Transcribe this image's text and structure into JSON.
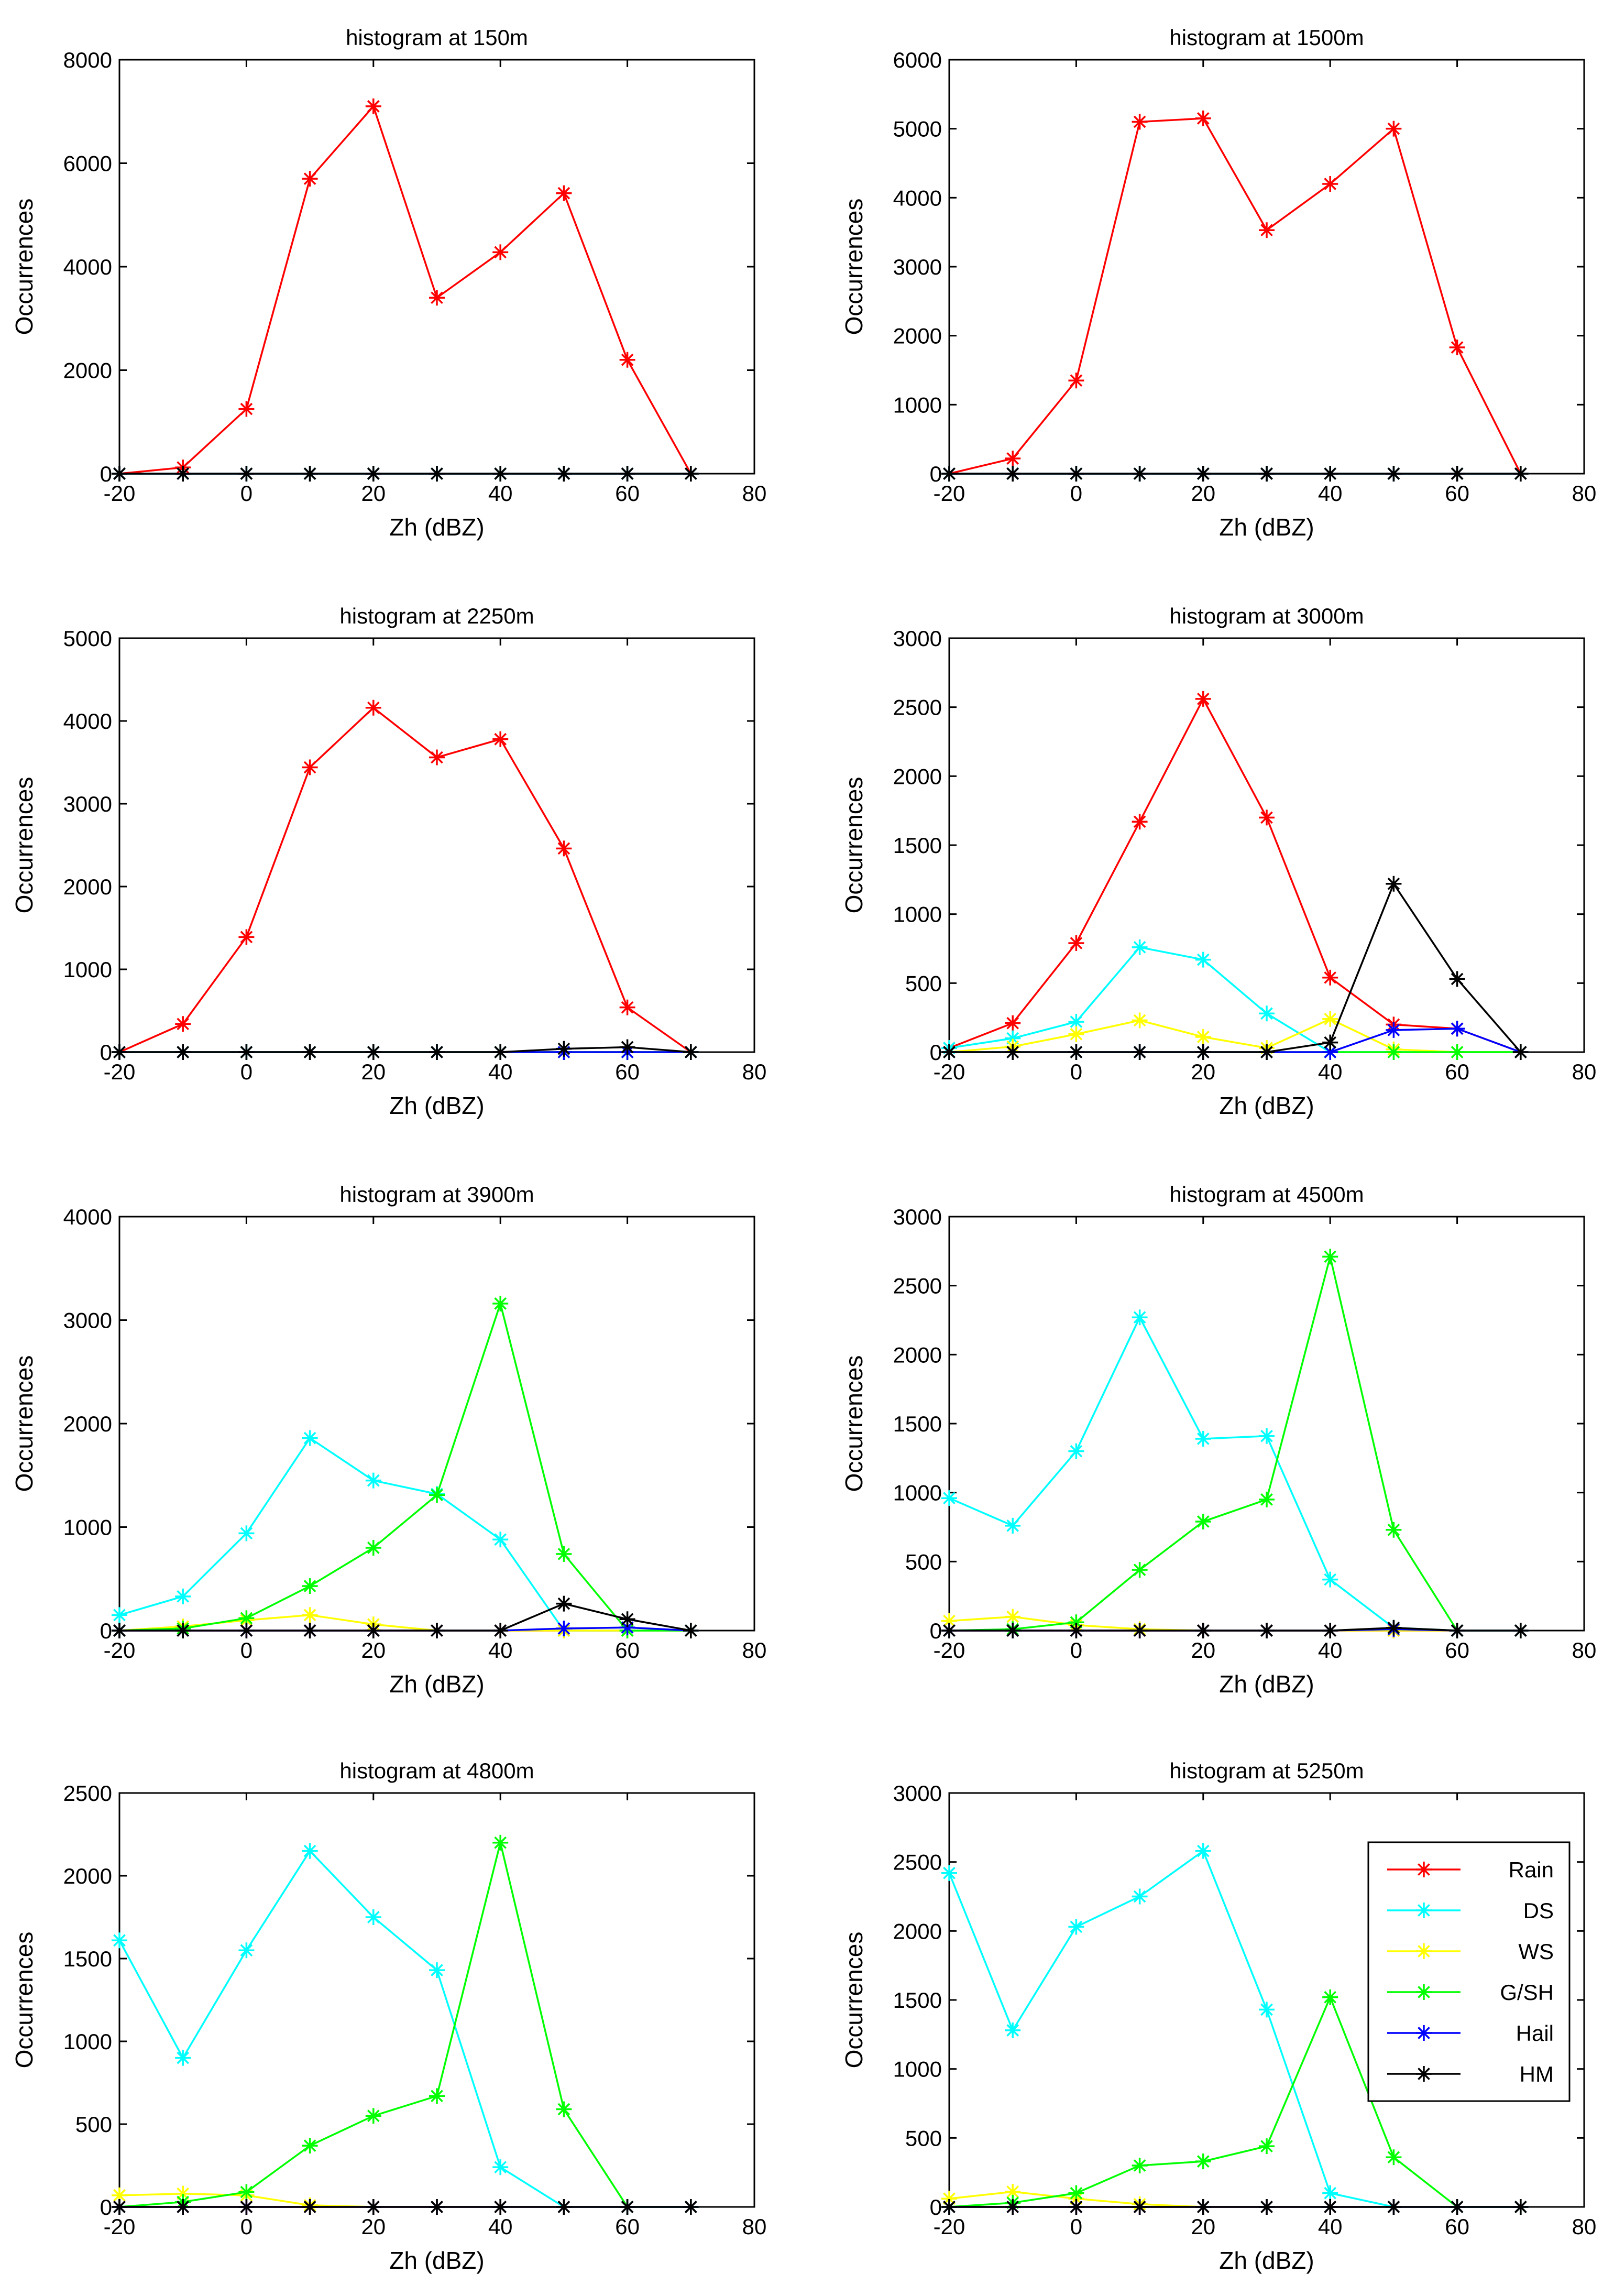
{
  "figure": {
    "xlabel": "Zh (dBZ)",
    "ylabel": "Occurrences"
  },
  "legend": {
    "placement": "top-right",
    "entries": [
      {
        "name": "Rain",
        "color": "#ff0000"
      },
      {
        "name": "DS",
        "color": "#00ffff"
      },
      {
        "name": "WS",
        "color": "#ffff00"
      },
      {
        "name": "G/SH",
        "color": "#00ff00"
      },
      {
        "name": "Hail",
        "color": "#0000ff"
      },
      {
        "name": "HM",
        "color": "#000000"
      }
    ]
  },
  "chart_data": [
    {
      "type": "line",
      "title": "histogram at 150m",
      "xlabel": "Zh (dBZ)",
      "ylabel": "Occurrences",
      "x": [
        -20,
        -10,
        0,
        10,
        20,
        30,
        40,
        50,
        60,
        70
      ],
      "xlim": [
        -20,
        80
      ],
      "ylim": [
        0,
        8000
      ],
      "xticks": [
        -20,
        0,
        20,
        40,
        60,
        80
      ],
      "yticks": [
        0,
        2000,
        4000,
        6000,
        8000
      ],
      "series": [
        {
          "name": "Rain",
          "color": "#ff0000",
          "values": [
            0,
            120,
            1250,
            5700,
            7100,
            3400,
            4280,
            5420,
            2200,
            0
          ]
        },
        {
          "name": "DS",
          "color": "#00ffff",
          "values": [
            0,
            0,
            0,
            0,
            0,
            0,
            0,
            0,
            0,
            0
          ]
        },
        {
          "name": "WS",
          "color": "#ffff00",
          "values": [
            0,
            0,
            0,
            0,
            0,
            0,
            0,
            0,
            0,
            0
          ]
        },
        {
          "name": "G/SH",
          "color": "#00ff00",
          "values": [
            0,
            0,
            0,
            0,
            0,
            0,
            0,
            0,
            0,
            0
          ]
        },
        {
          "name": "Hail",
          "color": "#0000ff",
          "values": [
            0,
            0,
            0,
            0,
            0,
            0,
            0,
            0,
            0,
            0
          ]
        },
        {
          "name": "HM",
          "color": "#000000",
          "values": [
            0,
            0,
            0,
            0,
            0,
            0,
            0,
            0,
            0,
            0
          ]
        }
      ]
    },
    {
      "type": "line",
      "title": "histogram at 1500m",
      "xlabel": "Zh (dBZ)",
      "ylabel": "Occurrences",
      "x": [
        -20,
        -10,
        0,
        10,
        20,
        30,
        40,
        50,
        60,
        70
      ],
      "xlim": [
        -20,
        80
      ],
      "ylim": [
        0,
        6000
      ],
      "xticks": [
        -20,
        0,
        20,
        40,
        60,
        80
      ],
      "yticks": [
        0,
        1000,
        2000,
        3000,
        4000,
        5000,
        6000
      ],
      "series": [
        {
          "name": "Rain",
          "color": "#ff0000",
          "values": [
            0,
            220,
            1350,
            5100,
            5150,
            3530,
            4200,
            5000,
            1830,
            0
          ]
        },
        {
          "name": "DS",
          "color": "#00ffff",
          "values": [
            0,
            0,
            0,
            0,
            0,
            0,
            0,
            0,
            0,
            0
          ]
        },
        {
          "name": "WS",
          "color": "#ffff00",
          "values": [
            0,
            0,
            0,
            0,
            0,
            0,
            0,
            0,
            0,
            0
          ]
        },
        {
          "name": "G/SH",
          "color": "#00ff00",
          "values": [
            0,
            0,
            0,
            0,
            0,
            0,
            0,
            0,
            0,
            0
          ]
        },
        {
          "name": "Hail",
          "color": "#0000ff",
          "values": [
            0,
            0,
            0,
            0,
            0,
            0,
            0,
            0,
            0,
            0
          ]
        },
        {
          "name": "HM",
          "color": "#000000",
          "values": [
            0,
            0,
            0,
            0,
            0,
            0,
            0,
            0,
            0,
            0
          ]
        }
      ]
    },
    {
      "type": "line",
      "title": "histogram at 2250m",
      "xlabel": "Zh (dBZ)",
      "ylabel": "Occurrences",
      "x": [
        -20,
        -10,
        0,
        10,
        20,
        30,
        40,
        50,
        60,
        70
      ],
      "xlim": [
        -20,
        80
      ],
      "ylim": [
        0,
        5000
      ],
      "xticks": [
        -20,
        0,
        20,
        40,
        60,
        80
      ],
      "yticks": [
        0,
        1000,
        2000,
        3000,
        4000,
        5000
      ],
      "series": [
        {
          "name": "Rain",
          "color": "#ff0000",
          "values": [
            0,
            340,
            1390,
            3440,
            4160,
            3560,
            3780,
            2460,
            540,
            0
          ]
        },
        {
          "name": "DS",
          "color": "#00ffff",
          "values": [
            0,
            0,
            0,
            0,
            0,
            0,
            0,
            0,
            0,
            0
          ]
        },
        {
          "name": "WS",
          "color": "#ffff00",
          "values": [
            0,
            0,
            0,
            0,
            0,
            0,
            0,
            0,
            0,
            0
          ]
        },
        {
          "name": "G/SH",
          "color": "#00ff00",
          "values": [
            0,
            0,
            0,
            0,
            0,
            0,
            0,
            0,
            0,
            0
          ]
        },
        {
          "name": "Hail",
          "color": "#0000ff",
          "values": [
            0,
            0,
            0,
            0,
            0,
            0,
            0,
            0,
            0,
            0
          ]
        },
        {
          "name": "HM",
          "color": "#000000",
          "values": [
            0,
            0,
            0,
            0,
            0,
            0,
            0,
            40,
            60,
            0
          ]
        }
      ]
    },
    {
      "type": "line",
      "title": "histogram at 3000m",
      "xlabel": "Zh (dBZ)",
      "ylabel": "Occurrences",
      "x": [
        -20,
        -10,
        0,
        10,
        20,
        30,
        40,
        50,
        60,
        70
      ],
      "xlim": [
        -20,
        80
      ],
      "ylim": [
        0,
        3000
      ],
      "xticks": [
        -20,
        0,
        20,
        40,
        60,
        80
      ],
      "yticks": [
        0,
        500,
        1000,
        1500,
        2000,
        2500,
        3000
      ],
      "series": [
        {
          "name": "Rain",
          "color": "#ff0000",
          "values": [
            30,
            210,
            790,
            1670,
            2560,
            1700,
            540,
            200,
            170,
            0
          ]
        },
        {
          "name": "DS",
          "color": "#00ffff",
          "values": [
            30,
            100,
            220,
            760,
            670,
            280,
            0,
            0,
            0,
            0
          ]
        },
        {
          "name": "WS",
          "color": "#ffff00",
          "values": [
            0,
            40,
            130,
            230,
            110,
            30,
            240,
            20,
            0,
            0
          ]
        },
        {
          "name": "G/SH",
          "color": "#00ff00",
          "values": [
            0,
            0,
            0,
            0,
            0,
            0,
            0,
            0,
            0,
            0
          ]
        },
        {
          "name": "Hail",
          "color": "#0000ff",
          "values": [
            0,
            0,
            0,
            0,
            0,
            0,
            0,
            160,
            170,
            0
          ]
        },
        {
          "name": "HM",
          "color": "#000000",
          "values": [
            0,
            0,
            0,
            0,
            0,
            0,
            70,
            1220,
            530,
            0
          ]
        }
      ]
    },
    {
      "type": "line",
      "title": "histogram at 3900m",
      "xlabel": "Zh (dBZ)",
      "ylabel": "Occurrences",
      "x": [
        -20,
        -10,
        0,
        10,
        20,
        30,
        40,
        50,
        60,
        70
      ],
      "xlim": [
        -20,
        80
      ],
      "ylim": [
        0,
        4000
      ],
      "xticks": [
        -20,
        0,
        20,
        40,
        60,
        80
      ],
      "yticks": [
        0,
        1000,
        2000,
        3000,
        4000
      ],
      "series": [
        {
          "name": "Rain",
          "color": "#ff0000",
          "values": [
            0,
            0,
            0,
            0,
            0,
            0,
            0,
            0,
            0,
            0
          ]
        },
        {
          "name": "DS",
          "color": "#00ffff",
          "values": [
            150,
            330,
            940,
            1860,
            1450,
            1320,
            880,
            0,
            0,
            0
          ]
        },
        {
          "name": "WS",
          "color": "#ffff00",
          "values": [
            0,
            40,
            100,
            150,
            60,
            0,
            0,
            0,
            0,
            0
          ]
        },
        {
          "name": "G/SH",
          "color": "#00ff00",
          "values": [
            0,
            20,
            120,
            430,
            800,
            1310,
            3160,
            740,
            0,
            0
          ]
        },
        {
          "name": "Hail",
          "color": "#0000ff",
          "values": [
            0,
            0,
            0,
            0,
            0,
            0,
            0,
            20,
            30,
            0
          ]
        },
        {
          "name": "HM",
          "color": "#000000",
          "values": [
            0,
            0,
            0,
            0,
            0,
            0,
            0,
            260,
            110,
            0
          ]
        }
      ]
    },
    {
      "type": "line",
      "title": "histogram at 4500m",
      "xlabel": "Zh (dBZ)",
      "ylabel": "Occurrences",
      "x": [
        -20,
        -10,
        0,
        10,
        20,
        30,
        40,
        50,
        60,
        70
      ],
      "xlim": [
        -20,
        80
      ],
      "ylim": [
        0,
        3000
      ],
      "xticks": [
        -20,
        0,
        20,
        40,
        60,
        80
      ],
      "yticks": [
        0,
        500,
        1000,
        1500,
        2000,
        2500,
        3000
      ],
      "series": [
        {
          "name": "Rain",
          "color": "#ff0000",
          "values": [
            0,
            0,
            0,
            0,
            0,
            0,
            0,
            0,
            0,
            0
          ]
        },
        {
          "name": "DS",
          "color": "#00ffff",
          "values": [
            960,
            760,
            1300,
            2270,
            1390,
            1410,
            370,
            20,
            0,
            0
          ]
        },
        {
          "name": "WS",
          "color": "#ffff00",
          "values": [
            70,
            100,
            40,
            10,
            0,
            0,
            0,
            0,
            0,
            0
          ]
        },
        {
          "name": "G/SH",
          "color": "#00ff00",
          "values": [
            0,
            10,
            60,
            440,
            790,
            950,
            2710,
            730,
            0,
            0
          ]
        },
        {
          "name": "Hail",
          "color": "#0000ff",
          "values": [
            0,
            0,
            0,
            0,
            0,
            0,
            0,
            10,
            0,
            0
          ]
        },
        {
          "name": "HM",
          "color": "#000000",
          "values": [
            0,
            0,
            0,
            0,
            0,
            0,
            0,
            20,
            0,
            0
          ]
        }
      ]
    },
    {
      "type": "line",
      "title": "histogram at 4800m",
      "xlabel": "Zh (dBZ)",
      "ylabel": "Occurrences",
      "x": [
        -20,
        -10,
        0,
        10,
        20,
        30,
        40,
        50,
        60,
        70
      ],
      "xlim": [
        -20,
        80
      ],
      "ylim": [
        0,
        2500
      ],
      "xticks": [
        -20,
        0,
        20,
        40,
        60,
        80
      ],
      "yticks": [
        0,
        500,
        1000,
        1500,
        2000,
        2500
      ],
      "series": [
        {
          "name": "Rain",
          "color": "#ff0000",
          "values": [
            0,
            0,
            0,
            0,
            0,
            0,
            0,
            0,
            0,
            0
          ]
        },
        {
          "name": "DS",
          "color": "#00ffff",
          "values": [
            1610,
            900,
            1550,
            2150,
            1750,
            1430,
            240,
            0,
            0,
            0
          ]
        },
        {
          "name": "WS",
          "color": "#ffff00",
          "values": [
            70,
            80,
            70,
            10,
            0,
            0,
            0,
            0,
            0,
            0
          ]
        },
        {
          "name": "G/SH",
          "color": "#00ff00",
          "values": [
            0,
            30,
            90,
            370,
            550,
            670,
            2200,
            590,
            0,
            0
          ]
        },
        {
          "name": "Hail",
          "color": "#0000ff",
          "values": [
            0,
            0,
            0,
            0,
            0,
            0,
            0,
            0,
            0,
            0
          ]
        },
        {
          "name": "HM",
          "color": "#000000",
          "values": [
            0,
            0,
            0,
            0,
            0,
            0,
            0,
            0,
            0,
            0
          ]
        }
      ]
    },
    {
      "type": "line",
      "title": "histogram at 5250m",
      "xlabel": "Zh (dBZ)",
      "ylabel": "Occurrences",
      "x": [
        -20,
        -10,
        0,
        10,
        20,
        30,
        40,
        50,
        60,
        70
      ],
      "xlim": [
        -20,
        80
      ],
      "ylim": [
        0,
        3000
      ],
      "xticks": [
        -20,
        0,
        20,
        40,
        60,
        80
      ],
      "yticks": [
        0,
        500,
        1000,
        1500,
        2000,
        2500,
        3000
      ],
      "series": [
        {
          "name": "Rain",
          "color": "#ff0000",
          "values": [
            0,
            0,
            0,
            0,
            0,
            0,
            0,
            0,
            0,
            0
          ]
        },
        {
          "name": "DS",
          "color": "#00ffff",
          "values": [
            2420,
            1280,
            2030,
            2250,
            2580,
            1430,
            100,
            0,
            0,
            0
          ]
        },
        {
          "name": "WS",
          "color": "#ffff00",
          "values": [
            60,
            110,
            60,
            20,
            0,
            0,
            0,
            0,
            0,
            0
          ]
        },
        {
          "name": "G/SH",
          "color": "#00ff00",
          "values": [
            0,
            30,
            100,
            300,
            330,
            440,
            1520,
            360,
            0,
            0
          ]
        },
        {
          "name": "Hail",
          "color": "#0000ff",
          "values": [
            0,
            0,
            0,
            0,
            0,
            0,
            0,
            0,
            0,
            0
          ]
        },
        {
          "name": "HM",
          "color": "#000000",
          "values": [
            0,
            0,
            0,
            0,
            0,
            0,
            0,
            0,
            0,
            0
          ]
        }
      ]
    }
  ]
}
